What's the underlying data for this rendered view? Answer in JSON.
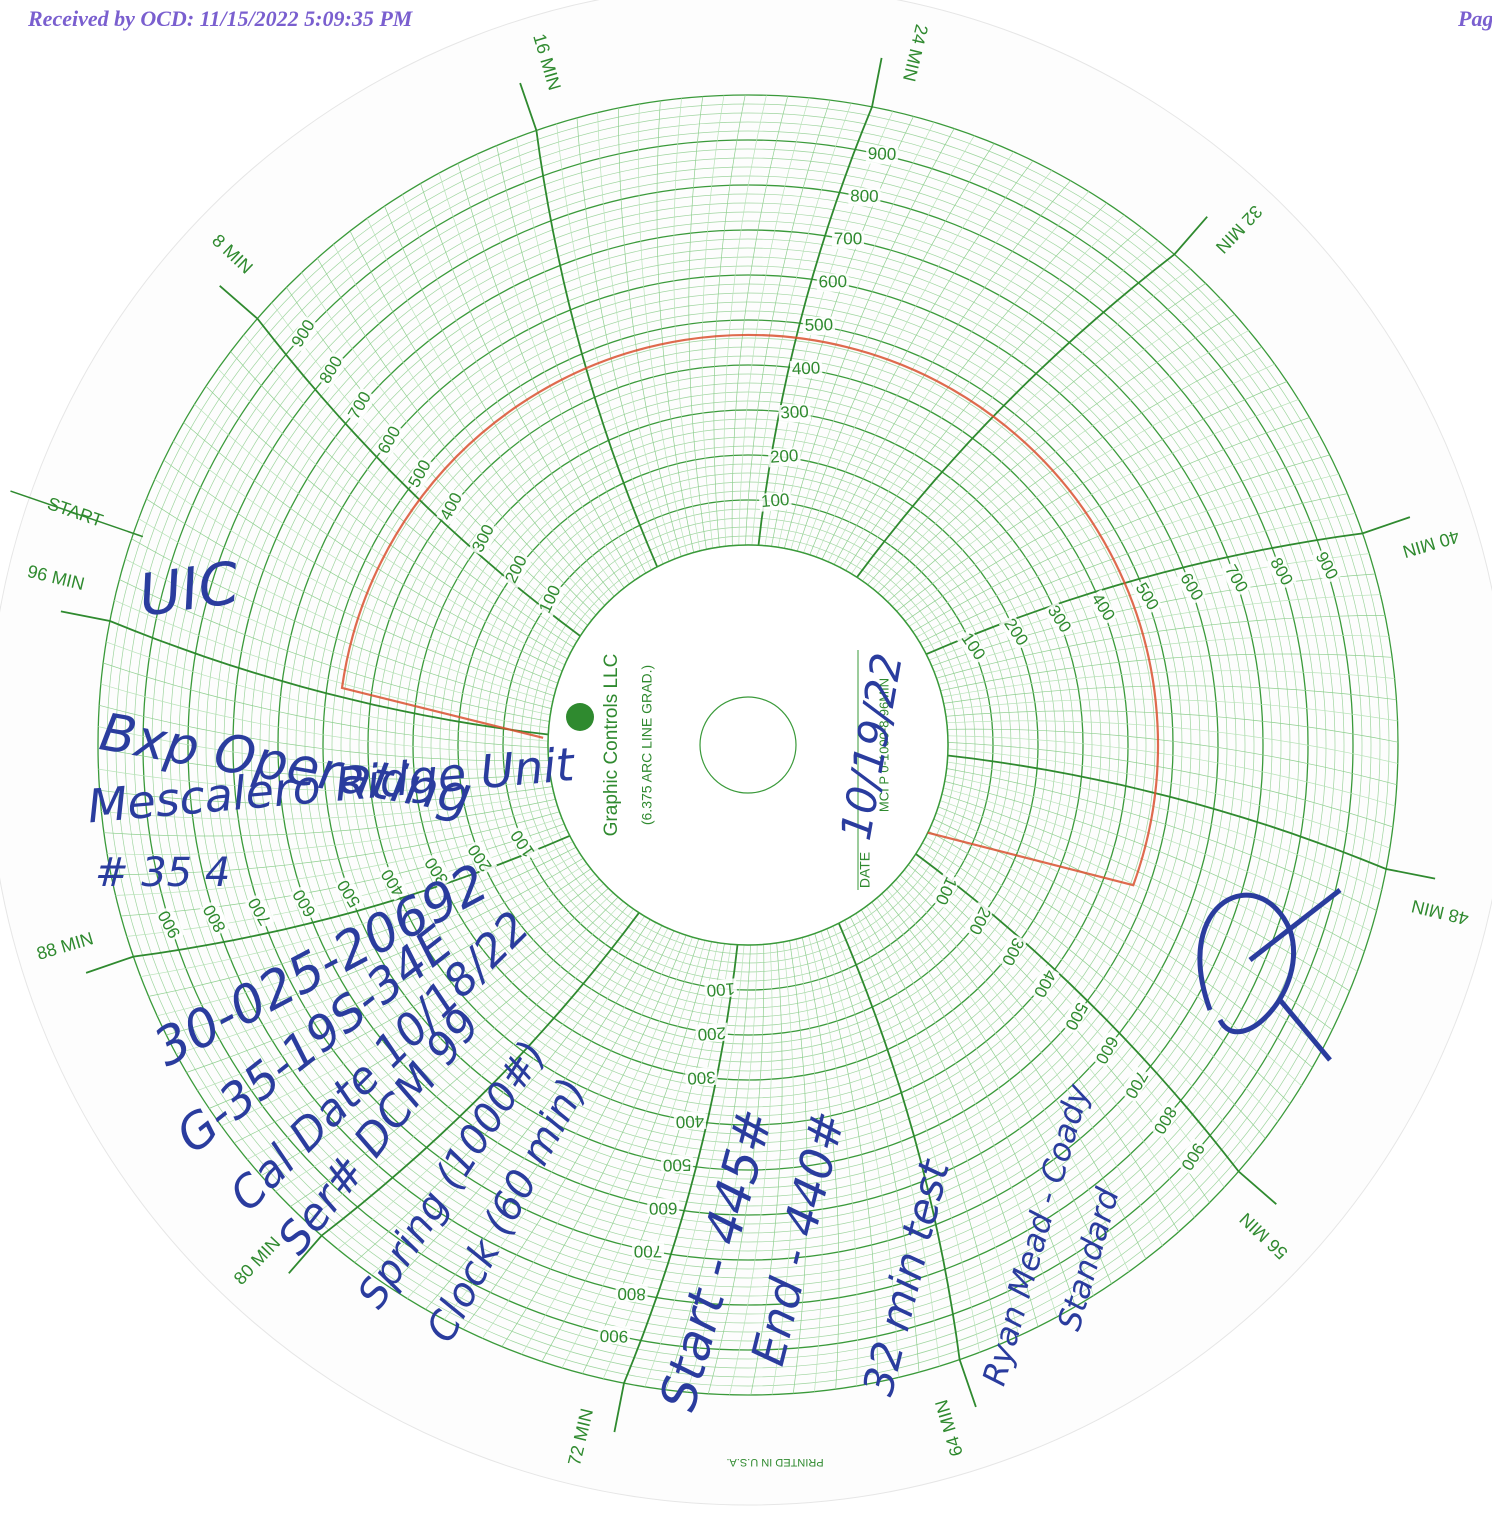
{
  "header": {
    "received": "Received by OCD: 11/15/2022 5:09:35 PM",
    "page": "Pag"
  },
  "chart": {
    "time_labels": [
      "START",
      "8 MIN",
      "16 MIN",
      "24 MIN",
      "32 MIN",
      "40 MIN",
      "48 MIN",
      "56 MIN",
      "64 MIN",
      "72 MIN",
      "80 MIN",
      "88 MIN",
      "96 MIN"
    ],
    "scale_labels": [
      "100",
      "200",
      "300",
      "400",
      "500",
      "600",
      "700",
      "800",
      "900"
    ],
    "brand": "Graphic Controls LLC",
    "grad": "(6.375 ARC LINE GRAD.)",
    "date_label": "DATE",
    "model": "MCI P 0-1000-8-96MIN",
    "printed": "PRINTED IN U.S.A."
  },
  "handwriting": {
    "date": "10/19/22",
    "lines": [
      "UIC",
      "Bxp Operating",
      "Mescalero Ridge Unit",
      "# 35 4",
      "30-025-20692",
      "G-35-19S-34E",
      "Cal Date 10/18/22",
      "Ser# DCM 99",
      "Spring (1000#)",
      "Clock (60 min)",
      "Start - 445#",
      "End - 440#",
      "32 min test",
      "Ryan Mead - Coady",
      "Standard"
    ]
  }
}
